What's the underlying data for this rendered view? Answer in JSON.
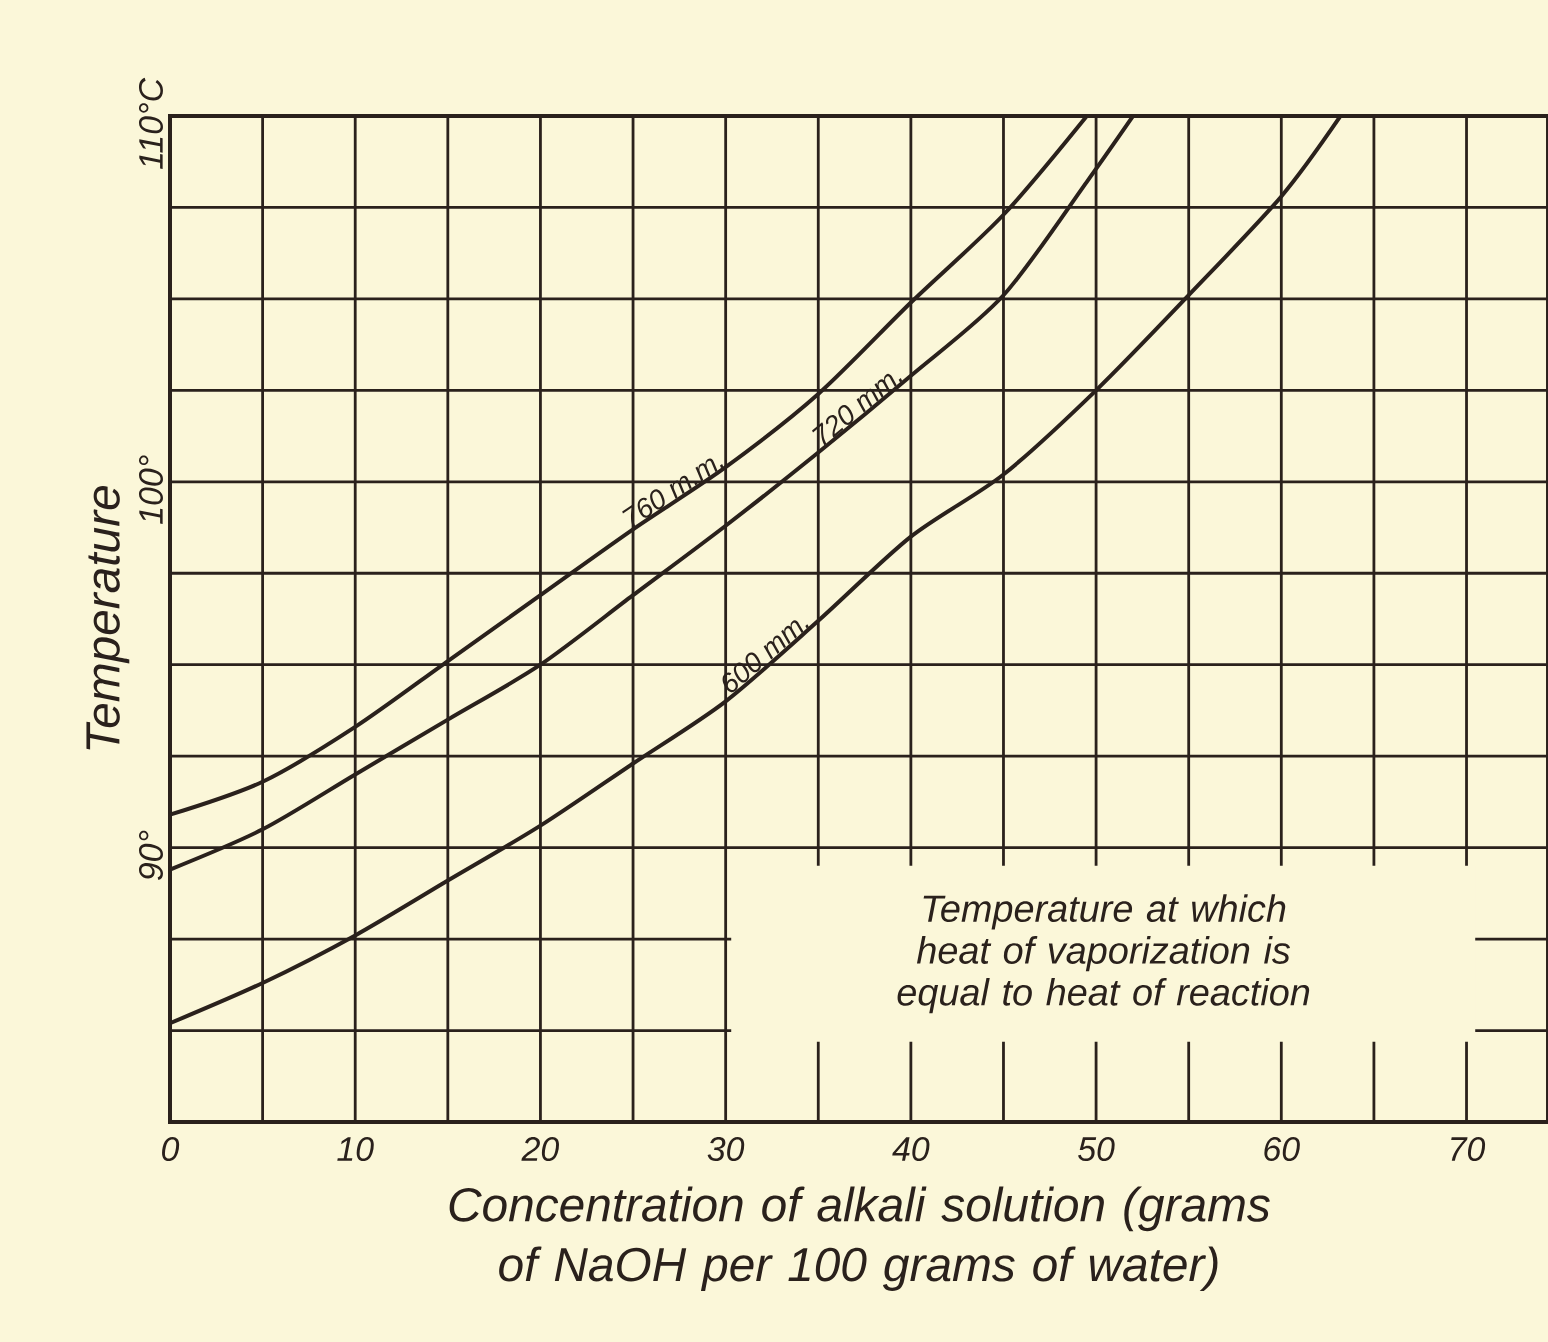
{
  "chart_data": {
    "type": "line",
    "xlabel": "Concentration of alkali solution (grams of NaOH per 100 grams of water)",
    "ylabel": "Temperature",
    "annotations": [
      "Temperature at which heat of vaporization is equal to heat of reaction"
    ],
    "series": [
      {
        "name": "760 m.m.",
        "color": "#2a211c",
        "x": [
          0,
          5,
          10,
          15,
          20,
          25,
          30,
          35,
          40,
          45,
          49.5
        ],
        "values": [
          90.9,
          91.8,
          93.3,
          95.1,
          96.9,
          98.7,
          100.4,
          102.4,
          104.9,
          107.3,
          110
        ]
      },
      {
        "name": "720 mm.",
        "color": "#2a211c",
        "x": [
          0,
          5,
          10,
          15,
          20,
          25,
          30,
          35,
          40,
          45,
          49.5,
          52
        ],
        "values": [
          89.4,
          90.5,
          92.0,
          93.5,
          95.0,
          96.9,
          98.8,
          100.8,
          102.9,
          105.1,
          108.2,
          110
        ]
      },
      {
        "name": "600 mm.",
        "color": "#2a211c",
        "x": [
          0,
          5,
          10,
          15,
          20,
          25,
          30,
          35,
          40,
          45,
          50,
          55,
          60,
          63.2
        ],
        "values": [
          85.2,
          86.3,
          87.6,
          89.1,
          90.6,
          92.3,
          94.0,
          96.2,
          98.5,
          100.2,
          102.5,
          105.1,
          107.8,
          110
        ]
      }
    ],
    "xlim": [
      0,
      74.4
    ],
    "ylim": [
      82.5,
      110
    ],
    "xticks": [
      0,
      {
        "value": 5,
        "label": null
      },
      10,
      {
        "value": 15,
        "label": null
      },
      20,
      {
        "value": 25,
        "label": null
      },
      30,
      {
        "value": 35,
        "label": null
      },
      40,
      {
        "value": 45,
        "label": null
      },
      50,
      {
        "value": 55,
        "label": null
      },
      60,
      {
        "value": 65,
        "label": null
      },
      70
    ],
    "yticks": [
      {
        "value": 82.5,
        "label": null
      },
      {
        "value": 85,
        "label": null
      },
      {
        "value": 87.5,
        "label": null
      },
      {
        "value": 90,
        "label": "90°"
      },
      {
        "value": 92.5,
        "label": null
      },
      {
        "value": 95,
        "label": null
      },
      {
        "value": 97.5,
        "label": null
      },
      {
        "value": 100,
        "label": "100°"
      },
      {
        "value": 102.5,
        "label": null
      },
      {
        "value": 105,
        "label": null
      },
      {
        "value": 107.5,
        "label": null
      },
      {
        "value": 110,
        "label": "110°C"
      }
    ],
    "grid": true,
    "legend": false,
    "marker": "none",
    "line_style": "solid"
  }
}
